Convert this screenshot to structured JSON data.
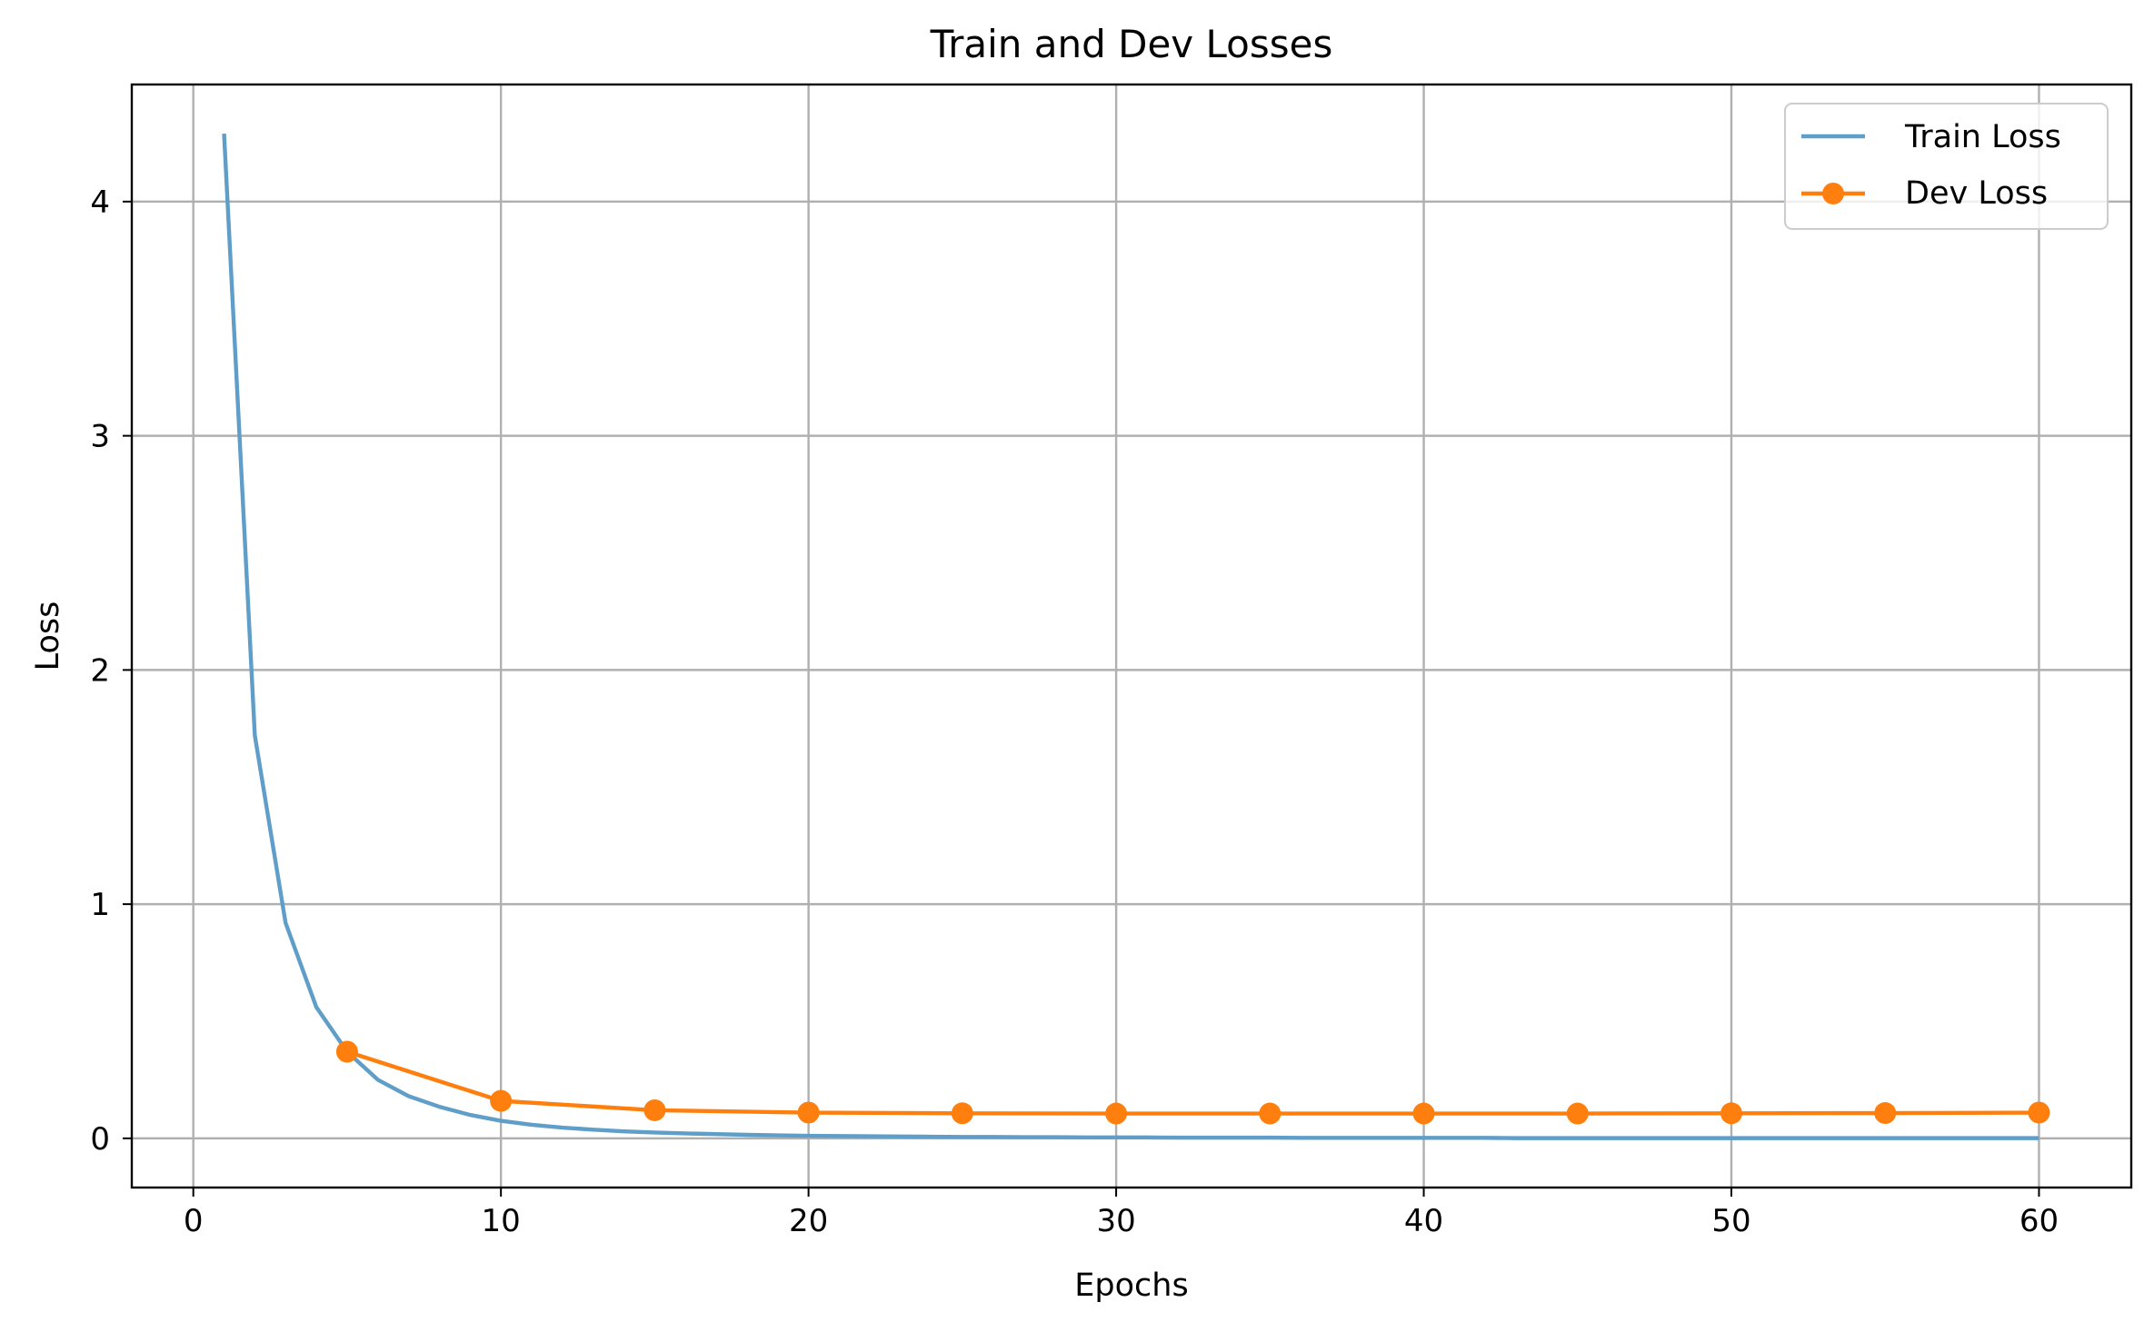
{
  "chart_data": {
    "type": "line",
    "title": "Train and Dev Losses",
    "xlabel": "Epochs",
    "ylabel": "Loss",
    "xlim": [
      -2,
      63
    ],
    "ylim": [
      -0.21,
      4.5
    ],
    "xticks": [
      0,
      10,
      20,
      30,
      40,
      50,
      60
    ],
    "yticks": [
      0,
      1,
      2,
      3,
      4
    ],
    "grid": true,
    "legend_position": "top-right",
    "colors": {
      "train": "#5f9ec9",
      "dev": "#ff7f0e",
      "grid": "#b0b0b0"
    },
    "series": [
      {
        "name": "Train Loss",
        "style": "line",
        "x": [
          1,
          2,
          3,
          4,
          5,
          6,
          7,
          8,
          9,
          10,
          11,
          12,
          13,
          14,
          15,
          16,
          17,
          18,
          19,
          20,
          21,
          22,
          23,
          24,
          25,
          26,
          27,
          28,
          29,
          30,
          31,
          32,
          33,
          34,
          35,
          36,
          37,
          38,
          39,
          40,
          41,
          42,
          43,
          44,
          45,
          46,
          47,
          48,
          49,
          50,
          51,
          52,
          53,
          54,
          55,
          56,
          57,
          58,
          59,
          60
        ],
        "y": [
          4.29,
          1.72,
          0.92,
          0.56,
          0.37,
          0.25,
          0.18,
          0.135,
          0.1,
          0.075,
          0.058,
          0.046,
          0.037,
          0.03,
          0.025,
          0.021,
          0.018,
          0.015,
          0.013,
          0.011,
          0.01,
          0.009,
          0.008,
          0.007,
          0.006,
          0.006,
          0.005,
          0.005,
          0.004,
          0.004,
          0.004,
          0.003,
          0.003,
          0.003,
          0.003,
          0.002,
          0.002,
          0.002,
          0.002,
          0.002,
          0.002,
          0.002,
          0.001,
          0.001,
          0.001,
          0.001,
          0.001,
          0.001,
          0.001,
          0.001,
          0.001,
          0.001,
          0.001,
          0.001,
          0.001,
          0.001,
          0.001,
          0.001,
          0.001,
          0.001
        ]
      },
      {
        "name": "Dev Loss",
        "style": "line-marker",
        "x": [
          5,
          10,
          15,
          20,
          25,
          30,
          35,
          40,
          45,
          50,
          55,
          60
        ],
        "y": [
          0.37,
          0.16,
          0.12,
          0.11,
          0.107,
          0.106,
          0.106,
          0.106,
          0.106,
          0.107,
          0.108,
          0.11
        ]
      }
    ]
  }
}
